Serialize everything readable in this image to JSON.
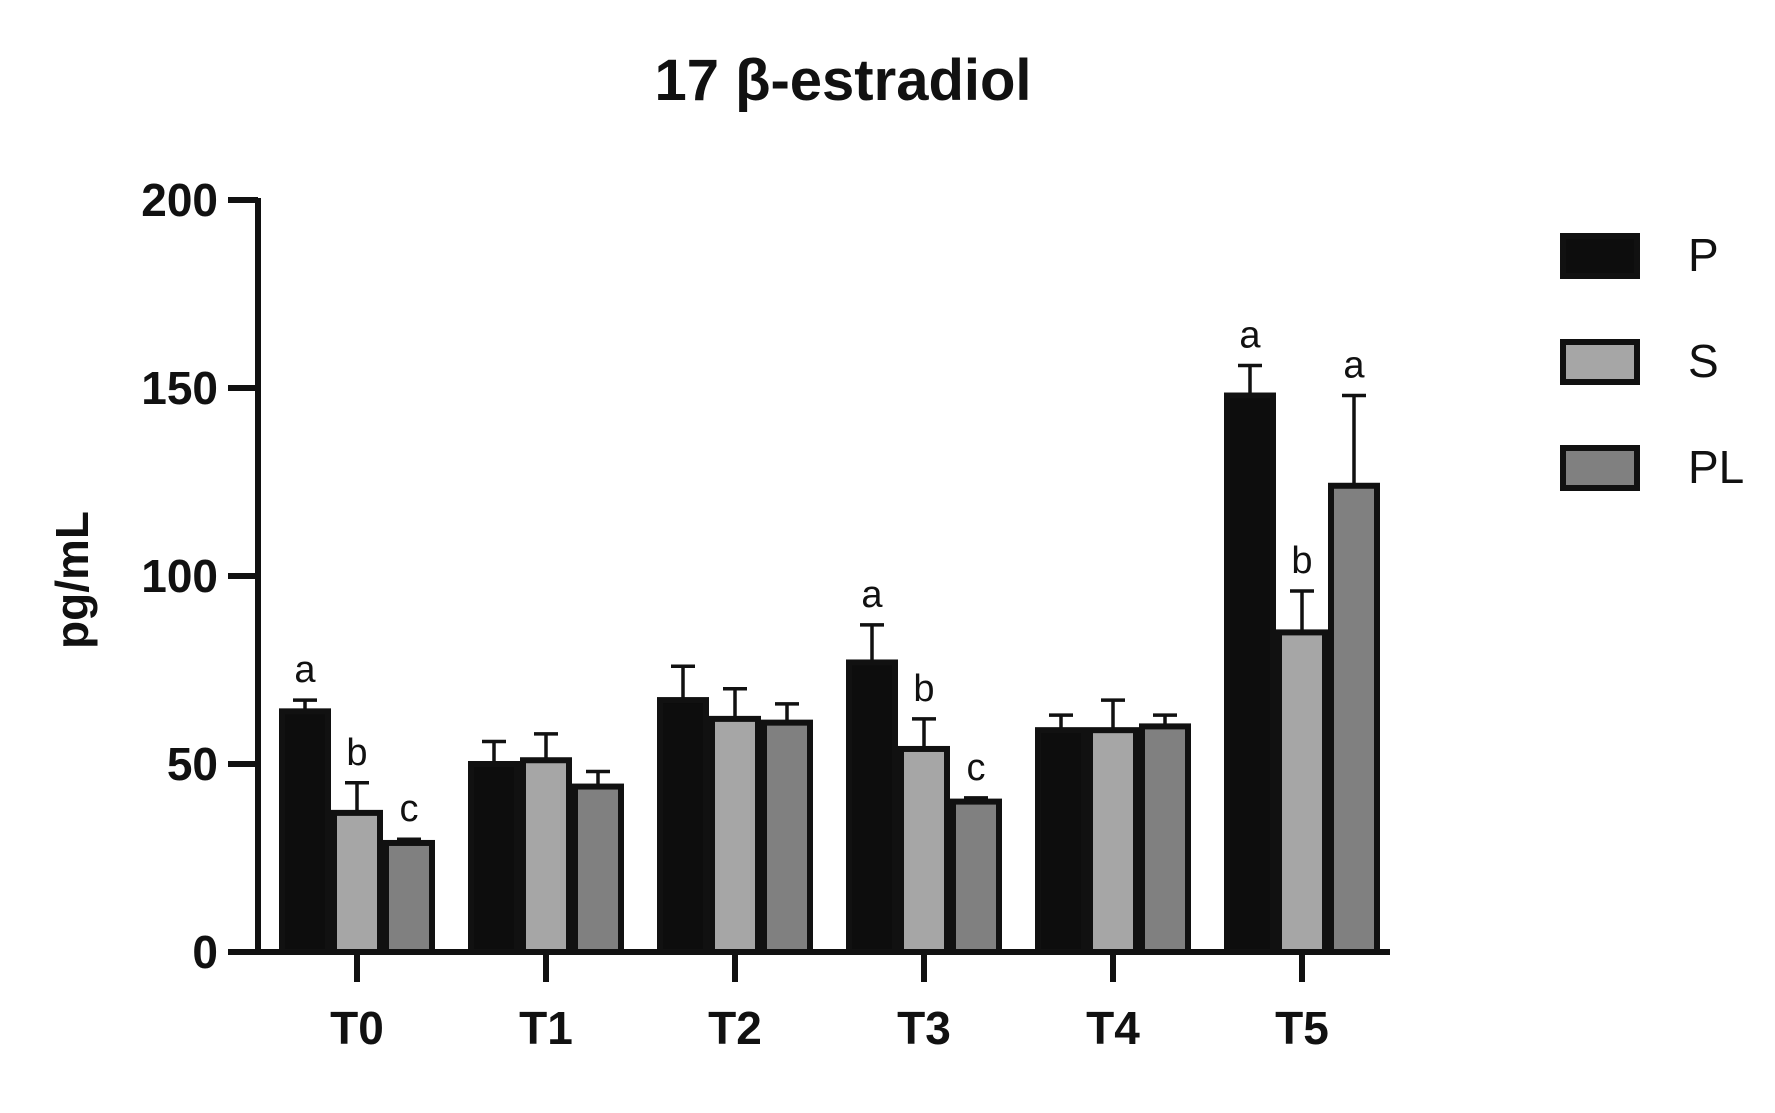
{
  "chart_data": {
    "type": "bar",
    "title": "17 β-estradiol",
    "xlabel": "",
    "ylabel": "pg/mL",
    "ylim": [
      0,
      200
    ],
    "yticks": [
      "0",
      "50",
      "100",
      "150",
      "200"
    ],
    "categories": [
      "T0",
      "T1",
      "T2",
      "T3",
      "T4",
      "T5"
    ],
    "series": [
      {
        "name": "P",
        "color": "#0d0d0d",
        "values": [
          64,
          50,
          67,
          77,
          59,
          148
        ],
        "errors": [
          3,
          6,
          9,
          10,
          4,
          8
        ],
        "letters": [
          "a",
          "",
          "",
          "a",
          "",
          "a"
        ]
      },
      {
        "name": "S",
        "color": "#a6a6a6",
        "values": [
          37,
          51,
          62,
          54,
          59,
          85
        ],
        "errors": [
          8,
          7,
          8,
          8,
          8,
          11
        ],
        "letters": [
          "b",
          "",
          "",
          "b",
          "",
          "b"
        ]
      },
      {
        "name": "PL",
        "color": "#808080",
        "values": [
          29,
          44,
          61,
          40,
          60,
          124
        ],
        "errors": [
          1,
          4,
          5,
          1,
          3,
          24
        ],
        "letters": [
          "c",
          "",
          "",
          "c",
          "",
          "a"
        ]
      }
    ],
    "grid": false,
    "legend_position": "right"
  }
}
